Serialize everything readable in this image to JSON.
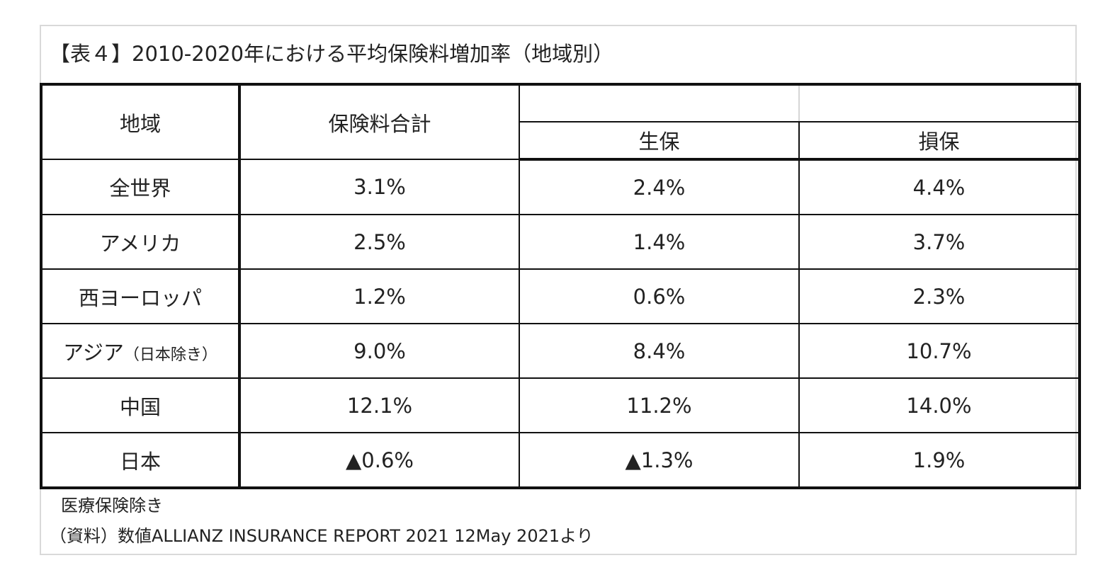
{
  "title": "【表４】2010-2020年における平均保険料増加率（地域別）",
  "headers": {
    "region": "地域",
    "total": "保険料合計",
    "life": "生保",
    "nonlife": "損保"
  },
  "rows": [
    {
      "region": "全世界",
      "region_sub": "",
      "total": "3.1%",
      "life": "2.4%",
      "nonlife": "4.4%"
    },
    {
      "region": "アメリカ",
      "region_sub": "",
      "total": "2.5%",
      "life": "1.4%",
      "nonlife": "3.7%"
    },
    {
      "region": "西ヨーロッパ",
      "region_sub": "",
      "total": "1.2%",
      "life": "0.6%",
      "nonlife": "2.3%"
    },
    {
      "region": "アジア",
      "region_sub": "（日本除き）",
      "total": "9.0%",
      "life": "8.4%",
      "nonlife": "10.7%"
    },
    {
      "region": "中国",
      "region_sub": "",
      "total": "12.1%",
      "life": "11.2%",
      "nonlife": "14.0%"
    },
    {
      "region": "日本",
      "region_sub": "",
      "total": "▲0.6%",
      "life": "▲1.3%",
      "nonlife": "1.9%"
    }
  ],
  "notes": {
    "note1": "医療保険除き",
    "source": "（資料）数値ALLIANZ INSURANCE REPORT 2021  12May 2021より"
  }
}
